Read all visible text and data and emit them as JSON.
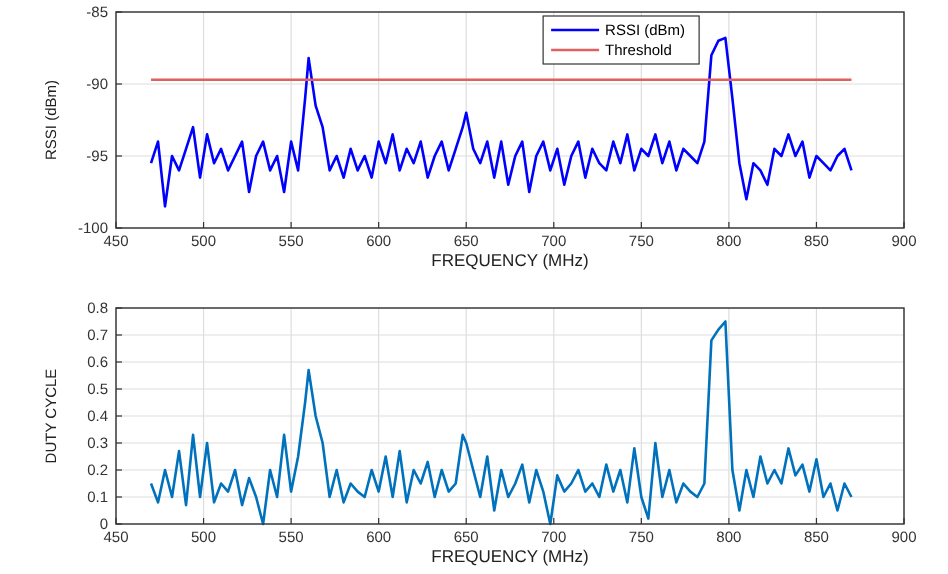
{
  "chart_data": [
    {
      "type": "line",
      "xlabel": "FREQUENCY (MHz)",
      "ylabel": "RSSI (dBm)",
      "xlim": [
        450,
        900
      ],
      "xticks": [
        450,
        500,
        550,
        600,
        650,
        700,
        750,
        800,
        850,
        900
      ],
      "ylim": [
        -100,
        -85
      ],
      "yticks": [
        -100,
        -95,
        -90,
        -85
      ],
      "grid": true,
      "legend": "top right",
      "series": [
        {
          "name": "RSSI (dBm)",
          "color": "#0000ff",
          "x": [
            470,
            474,
            478,
            482,
            486,
            490,
            494,
            498,
            502,
            506,
            510,
            514,
            518,
            522,
            526,
            530,
            534,
            538,
            542,
            546,
            550,
            554,
            558,
            560,
            564,
            568,
            572,
            576,
            580,
            584,
            588,
            592,
            596,
            600,
            604,
            608,
            612,
            616,
            620,
            624,
            628,
            632,
            636,
            640,
            644,
            648,
            650,
            654,
            658,
            662,
            666,
            670,
            674,
            678,
            682,
            686,
            690,
            694,
            698,
            702,
            706,
            710,
            714,
            718,
            722,
            726,
            730,
            734,
            738,
            742,
            746,
            750,
            754,
            758,
            762,
            766,
            770,
            774,
            778,
            782,
            786,
            790,
            794,
            798,
            802,
            806,
            810,
            814,
            818,
            822,
            826,
            830,
            834,
            838,
            842,
            846,
            850,
            854,
            858,
            862,
            866,
            870
          ],
          "values": [
            -95.5,
            -94,
            -98.5,
            -95,
            -96,
            -94.5,
            -93,
            -96.5,
            -93.5,
            -95.5,
            -94.5,
            -96,
            -95,
            -94,
            -97.5,
            -95,
            -94,
            -96,
            -95,
            -97.5,
            -94,
            -96,
            -91,
            -88.2,
            -91.5,
            -93,
            -96,
            -95,
            -96.5,
            -94.5,
            -96,
            -95,
            -96.5,
            -94,
            -95.5,
            -93.5,
            -96,
            -94.5,
            -95.5,
            -94,
            -96.5,
            -95,
            -94,
            -96,
            -94.5,
            -93,
            -92,
            -94.5,
            -95.5,
            -94,
            -96.5,
            -94,
            -97,
            -95,
            -94,
            -97.5,
            -95,
            -94,
            -96,
            -94.5,
            -97,
            -95,
            -94,
            -96.5,
            -94.5,
            -95.5,
            -96,
            -94,
            -95.5,
            -93.5,
            -96,
            -94.5,
            -95,
            -93.5,
            -95.5,
            -94,
            -96,
            -94.5,
            -95,
            -95.5,
            -94,
            -88,
            -87,
            -86.8,
            -91,
            -95.5,
            -98,
            -95.5,
            -96,
            -97,
            -94.5,
            -95,
            -93.5,
            -95,
            -94,
            -96.5,
            -95,
            -95.5,
            -96,
            -95,
            -94.5,
            -96
          ]
        },
        {
          "name": "Threshold",
          "color": "#e06060",
          "x": [
            470,
            870
          ],
          "values": [
            -89.7,
            -89.7
          ]
        }
      ]
    },
    {
      "type": "line",
      "xlabel": "FREQUENCY (MHz)",
      "ylabel": "DUTY CYCLE",
      "xlim": [
        450,
        900
      ],
      "xticks": [
        450,
        500,
        550,
        600,
        650,
        700,
        750,
        800,
        850,
        900
      ],
      "ylim": [
        0,
        0.8
      ],
      "yticks": [
        0,
        0.1,
        0.2,
        0.3,
        0.4,
        0.5,
        0.6,
        0.7,
        0.8
      ],
      "grid": true,
      "series": [
        {
          "color": "#0072bd",
          "x": [
            470,
            474,
            478,
            482,
            486,
            490,
            494,
            498,
            502,
            506,
            510,
            514,
            518,
            522,
            526,
            530,
            534,
            538,
            542,
            546,
            550,
            554,
            558,
            560,
            564,
            568,
            572,
            576,
            580,
            584,
            588,
            592,
            596,
            600,
            604,
            608,
            612,
            616,
            620,
            624,
            628,
            632,
            636,
            640,
            644,
            648,
            650,
            654,
            658,
            662,
            666,
            670,
            674,
            678,
            682,
            686,
            690,
            694,
            698,
            702,
            706,
            710,
            714,
            718,
            722,
            726,
            730,
            734,
            738,
            742,
            746,
            750,
            754,
            758,
            762,
            766,
            770,
            774,
            778,
            782,
            786,
            790,
            794,
            798,
            802,
            806,
            810,
            814,
            818,
            822,
            826,
            830,
            834,
            838,
            842,
            846,
            850,
            854,
            858,
            862,
            866,
            870
          ],
          "values": [
            0.15,
            0.08,
            0.2,
            0.1,
            0.27,
            0.07,
            0.33,
            0.1,
            0.3,
            0.08,
            0.15,
            0.12,
            0.2,
            0.07,
            0.17,
            0.1,
            0.0,
            0.2,
            0.1,
            0.33,
            0.12,
            0.25,
            0.45,
            0.57,
            0.4,
            0.3,
            0.1,
            0.2,
            0.08,
            0.15,
            0.12,
            0.1,
            0.2,
            0.12,
            0.25,
            0.1,
            0.27,
            0.08,
            0.2,
            0.15,
            0.23,
            0.1,
            0.2,
            0.12,
            0.15,
            0.33,
            0.3,
            0.2,
            0.1,
            0.25,
            0.05,
            0.2,
            0.1,
            0.15,
            0.22,
            0.08,
            0.2,
            0.12,
            0.0,
            0.18,
            0.12,
            0.15,
            0.2,
            0.12,
            0.15,
            0.1,
            0.22,
            0.12,
            0.2,
            0.08,
            0.28,
            0.1,
            0.02,
            0.3,
            0.1,
            0.2,
            0.08,
            0.15,
            0.12,
            0.1,
            0.15,
            0.68,
            0.72,
            0.75,
            0.2,
            0.05,
            0.2,
            0.1,
            0.25,
            0.15,
            0.2,
            0.15,
            0.28,
            0.18,
            0.22,
            0.12,
            0.24,
            0.1,
            0.15,
            0.05,
            0.15,
            0.1
          ]
        }
      ]
    }
  ]
}
